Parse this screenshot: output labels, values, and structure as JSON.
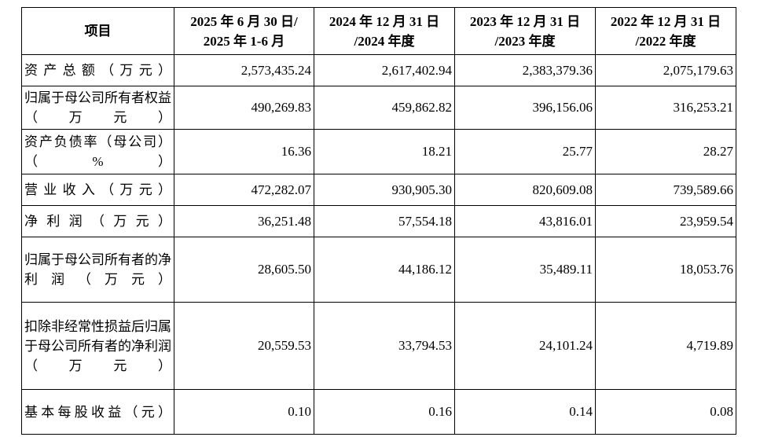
{
  "table": {
    "header": {
      "item": "项目",
      "columns": [
        {
          "line1": "2025 年 6 月 30 日/",
          "line2": "2025 年 1-6 月"
        },
        {
          "line1": "2024 年 12 月 31 日",
          "line2": "/2024 年度"
        },
        {
          "line1": "2023 年 12 月 31 日",
          "line2": "/2023 年度"
        },
        {
          "line1": "2022 年 12 月 31 日",
          "line2": "/2022 年度"
        }
      ]
    },
    "rows": [
      {
        "label": "资产总额（万元）",
        "values": [
          "2,573,435.24",
          "2,617,402.94",
          "2,383,379.36",
          "2,075,179.63"
        ]
      },
      {
        "label": "归属于母公司所有者权益（万元）",
        "values": [
          "490,269.83",
          "459,862.82",
          "396,156.06",
          "316,253.21"
        ]
      },
      {
        "label": "资产负债率（母公司）（%）",
        "values": [
          "16.36",
          "18.21",
          "25.77",
          "28.27"
        ]
      },
      {
        "label": "营业收入（万元）",
        "values": [
          "472,282.07",
          "930,905.30",
          "820,609.08",
          "739,589.66"
        ]
      },
      {
        "label": "净利润（万元）",
        "values": [
          "36,251.48",
          "57,554.18",
          "43,816.01",
          "23,959.54"
        ]
      },
      {
        "label": "归属于母公司所有者的净利润（万元）",
        "values": [
          "28,605.50",
          "44,186.12",
          "35,489.11",
          "18,053.76"
        ]
      },
      {
        "label": "扣除非经常性损益后归属于母公司所有者的净利润（万元）",
        "values": [
          "20,559.53",
          "33,794.53",
          "24,101.24",
          "4,719.89"
        ]
      },
      {
        "label": "基本每股收益（元）",
        "values": [
          "0.10",
          "0.16",
          "0.14",
          "0.08"
        ]
      }
    ]
  }
}
